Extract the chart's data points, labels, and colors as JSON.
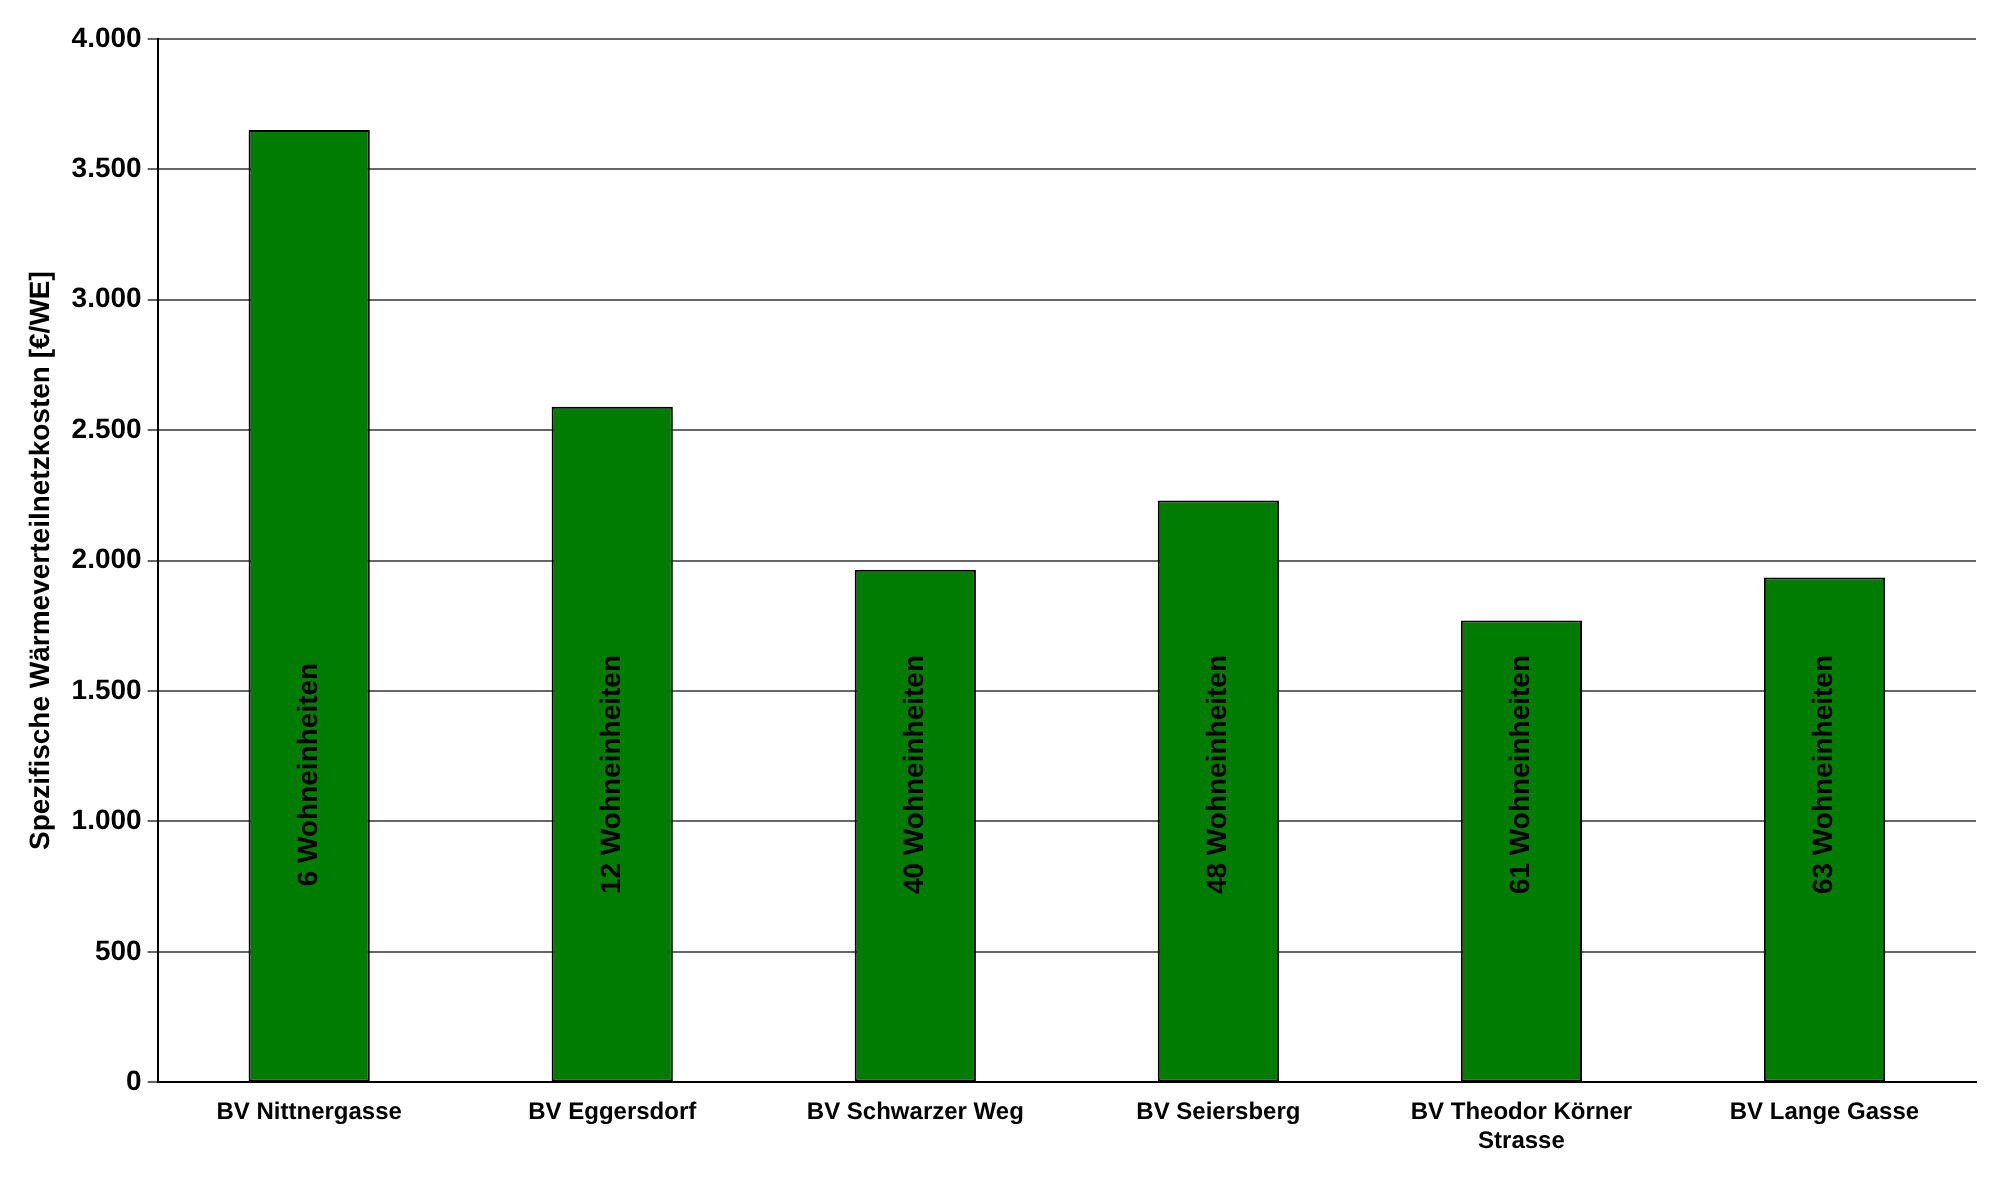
{
  "chart_data": {
    "type": "bar",
    "ylabel": "Spezifische Wärmeverteilnetzkosten [€/WE]",
    "categories": [
      "BV Nittnergasse",
      "BV Eggersdorf",
      "BV Schwarzer Weg",
      "BV Seiersberg",
      "BV Theodor Körner Strasse",
      "BV Lange Gasse"
    ],
    "values": [
      3650,
      2590,
      1965,
      2230,
      1770,
      1935
    ],
    "color": "#007d00",
    "ylim": [
      0,
      4000
    ],
    "yticks": [
      {
        "value": 0,
        "label": "0"
      },
      {
        "value": 500,
        "label": "500"
      },
      {
        "value": 1000,
        "label": "1.000"
      },
      {
        "value": 1500,
        "label": "1.500"
      },
      {
        "value": 2000,
        "label": "2.000"
      },
      {
        "value": 2500,
        "label": "2.500"
      },
      {
        "value": 3000,
        "label": "3.000"
      },
      {
        "value": 3500,
        "label": "3.500"
      },
      {
        "value": 4000,
        "label": "4.000"
      }
    ],
    "grid": "y",
    "legend": false,
    "annotations": [
      "6 Wohneinheiten",
      "12 Wohneinheiten",
      "40 Wohneinheiten",
      "48 Wohneinheiten",
      "61 Wohneinheiten",
      "63 Wohneinheiten"
    ]
  }
}
